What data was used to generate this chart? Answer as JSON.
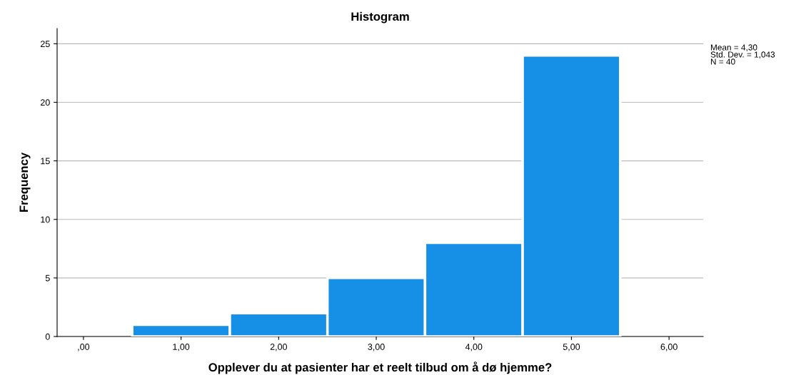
{
  "chart_data": {
    "type": "histogram",
    "title": "Histogram",
    "xlabel": "Opplever du at pasienter har et reelt tilbud om å dø hjemme?",
    "ylabel": "Frequency",
    "bins": [
      0.5,
      1.5,
      2.5,
      3.5,
      4.5,
      5.5
    ],
    "values": [
      1,
      2,
      5,
      8,
      24
    ],
    "color": "#1590e6",
    "xlim": [
      -0.27,
      6.35
    ],
    "xticks": [
      {
        "value": 0,
        "label": ",00"
      },
      {
        "value": 1,
        "label": "1,00"
      },
      {
        "value": 2,
        "label": "2,00"
      },
      {
        "value": 3,
        "label": "3,00"
      },
      {
        "value": 4,
        "label": "4,00"
      },
      {
        "value": 5,
        "label": "5,00"
      },
      {
        "value": 6,
        "label": "6,00"
      }
    ],
    "ylim": [
      0,
      26.3
    ],
    "yticks": [
      0,
      5,
      10,
      15,
      20,
      25
    ],
    "grid": "y",
    "annotations": [
      "Mean = 4,30",
      "Std. Dev. = 1,043",
      "N = 40"
    ]
  }
}
